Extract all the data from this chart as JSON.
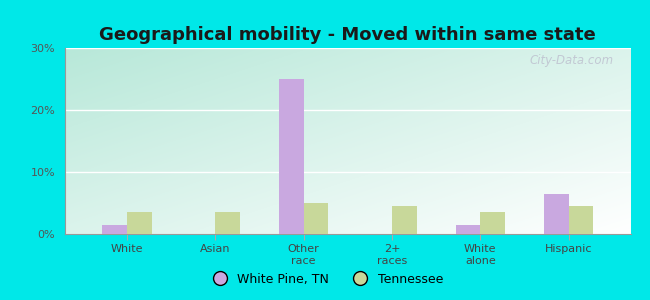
{
  "title": "Geographical mobility - Moved within same state",
  "categories": [
    "White",
    "Asian",
    "Other\nrace",
    "2+\nraces",
    "White\nalone",
    "Hispanic"
  ],
  "white_pine": [
    1.5,
    0.0,
    25.0,
    0.0,
    1.5,
    6.5
  ],
  "tennessee": [
    3.5,
    3.5,
    5.0,
    4.5,
    3.5,
    4.5
  ],
  "bar_color_wp": "#c9a8e0",
  "bar_color_tn": "#c8d89a",
  "ylim": [
    0,
    30
  ],
  "yticks": [
    0,
    10,
    20,
    30
  ],
  "ytick_labels": [
    "0%",
    "10%",
    "20%",
    "30%"
  ],
  "legend_wp": "White Pine, TN",
  "legend_tn": "Tennessee",
  "bg_color_topleft": "#b8e8d8",
  "bg_color_bottomright": "#f0faf0",
  "outer_color": "#00e8e8",
  "title_fontsize": 13,
  "watermark": "City-Data.com",
  "bar_width": 0.28
}
